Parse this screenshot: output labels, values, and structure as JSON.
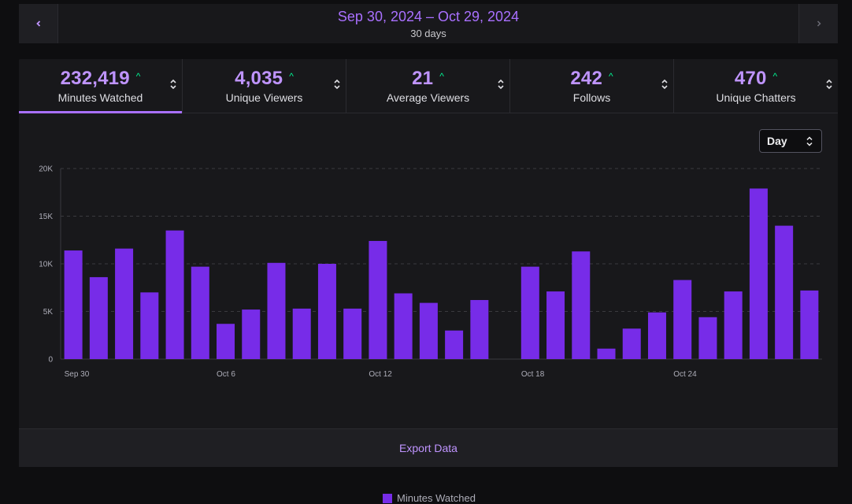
{
  "date_nav": {
    "range": "Sep 30, 2024 – Oct 29, 2024",
    "subtitle": "30 days",
    "prev_icon": "chevron-left-icon",
    "next_icon": "chevron-right-icon"
  },
  "metrics": [
    {
      "value": "232,419",
      "label": "Minutes Watched",
      "active": true
    },
    {
      "value": "4,035",
      "label": "Unique Viewers",
      "active": false
    },
    {
      "value": "21",
      "label": "Average Viewers",
      "active": false
    },
    {
      "value": "242",
      "label": "Follows",
      "active": false
    },
    {
      "value": "470",
      "label": "Unique Chatters",
      "active": false
    }
  ],
  "granularity_select": {
    "value": "Day"
  },
  "colors": {
    "accent": "#a970ff",
    "bar": "#772ce8",
    "up": "#00f593"
  },
  "chart_data": {
    "type": "bar",
    "categories": [
      "Sep 30",
      "Oct 1",
      "Oct 2",
      "Oct 3",
      "Oct 4",
      "Oct 5",
      "Oct 6",
      "Oct 7",
      "Oct 8",
      "Oct 9",
      "Oct 10",
      "Oct 11",
      "Oct 12",
      "Oct 13",
      "Oct 14",
      "Oct 15",
      "Oct 16",
      "Oct 17",
      "Oct 18",
      "Oct 19",
      "Oct 20",
      "Oct 21",
      "Oct 22",
      "Oct 23",
      "Oct 24",
      "Oct 25",
      "Oct 26",
      "Oct 27",
      "Oct 28",
      "Oct 29"
    ],
    "x_tick_labels": [
      "Sep 30",
      "Oct 6",
      "Oct 12",
      "Oct 18",
      "Oct 24"
    ],
    "series": [
      {
        "name": "Minutes Watched",
        "values": [
          11400,
          8600,
          11600,
          7000,
          13500,
          9700,
          3700,
          5200,
          10100,
          5300,
          10000,
          5300,
          12400,
          6900,
          5900,
          3000,
          6200,
          0,
          9700,
          7100,
          11300,
          1100,
          3200,
          4900,
          8300,
          4400,
          7100,
          17900,
          14000,
          7200
        ]
      }
    ],
    "y_ticks": [
      "0",
      "5K",
      "10K",
      "15K",
      "20K"
    ],
    "ylim": [
      0,
      20000
    ],
    "grid": true,
    "legend": "bottom-center"
  },
  "footer": {
    "export_label": "Export Data"
  }
}
